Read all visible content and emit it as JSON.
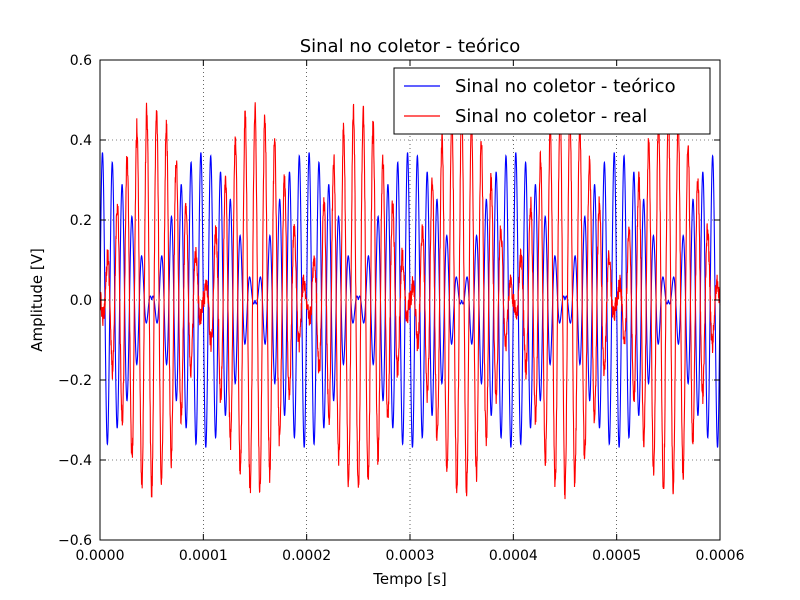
{
  "chart_data": {
    "type": "line",
    "title": "Sinal no coletor - teórico",
    "xlabel": "Tempo [s]",
    "ylabel": "Amplitude [V]",
    "xlim": [
      0,
      0.0006
    ],
    "ylim": [
      -0.6,
      0.6
    ],
    "xticks": [
      "0.0000",
      "0.0001",
      "0.0002",
      "0.0003",
      "0.0004",
      "0.0005",
      "0.0006"
    ],
    "yticks": [
      "−0.6",
      "−0.4",
      "−0.2",
      "0.0",
      "0.2",
      "0.4",
      "0.6"
    ],
    "grid": true,
    "legend_position": "top-right",
    "series": [
      {
        "name": "Sinal no coletor - teórico",
        "color": "#0000ff",
        "description": "AM signal, carrier ~100 kHz, envelope period ~0.0001 s, peak ~0.37 V, minima near 0.00005 s steps",
        "envelope_peak": 0.37,
        "carrier_frequency_hz": 100000,
        "envelope_period_s": 0.0001,
        "envelope_phase_s": 0.0
      },
      {
        "name": "Sinal no coletor - real",
        "color": "#ff0000",
        "description": "Measured AM signal in antiphase with theoretical, peak ~0.48 V with noise",
        "envelope_peak": 0.48,
        "carrier_frequency_hz": 100000,
        "envelope_period_s": 0.0001,
        "envelope_phase_s": 5e-05
      }
    ]
  }
}
